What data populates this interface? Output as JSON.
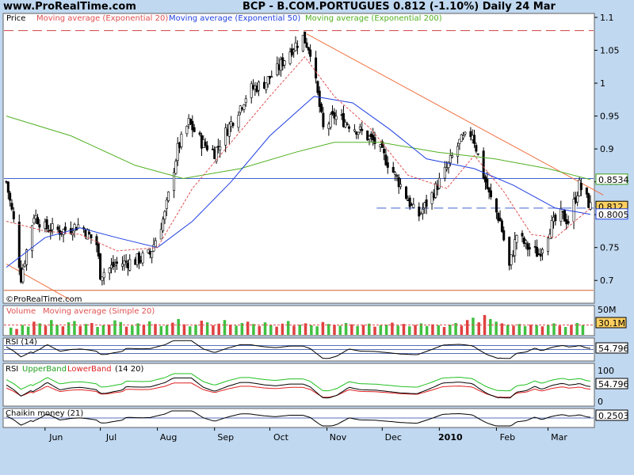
{
  "header": {
    "site": "www.ProRealTime.com",
    "title": "BCP - B.COM.PORTUGUES    0.812 (-1.10%)    Daily  24 Mar"
  },
  "colors": {
    "background": "#c0d8f0",
    "panel": "#ffffff",
    "ema20": "#e05050",
    "ema50": "#2040e0",
    "ema200": "#50b020",
    "trendline": "#f07040",
    "volume_up": "#40c040",
    "volume_down": "#e04040"
  },
  "chart_data": [
    {
      "type": "candlestick",
      "title": "Price",
      "legend": [
        "Moving average (Exponential 20)",
        "Moving average (Exponential 50)",
        "Moving average (Exponential 200)"
      ],
      "ylim": [
        0.675,
        1.1
      ],
      "yticks": [
        "1.1",
        "1.05",
        "1",
        "0.95",
        "0.9",
        "0.85",
        "0.8",
        "0.75",
        "0.7"
      ],
      "xticks": [
        "Jun",
        "Jul",
        "Aug",
        "Sep",
        "Oct",
        "Nov",
        "Dec",
        "2010",
        "Feb",
        "Mar"
      ],
      "x_start": "2009-05-11",
      "x_end": "2010-03-24",
      "close_path": [
        [
          "2009-05-11",
          0.85
        ],
        [
          "2009-05-15",
          0.79
        ],
        [
          "2009-05-19",
          0.705
        ],
        [
          "2009-05-26",
          0.8
        ],
        [
          "2009-06-01",
          0.78
        ],
        [
          "2009-06-10",
          0.775
        ],
        [
          "2009-06-20",
          0.785
        ],
        [
          "2009-06-29",
          0.755
        ],
        [
          "2009-07-01",
          0.71
        ],
        [
          "2009-07-10",
          0.725
        ],
        [
          "2009-07-20",
          0.73
        ],
        [
          "2009-07-28",
          0.74
        ],
        [
          "2009-08-05",
          0.8
        ],
        [
          "2009-08-12",
          0.9
        ],
        [
          "2009-08-18",
          0.94
        ],
        [
          "2009-08-25",
          0.91
        ],
        [
          "2009-09-01",
          0.895
        ],
        [
          "2009-09-10",
          0.94
        ],
        [
          "2009-09-20",
          0.99
        ],
        [
          "2009-09-28",
          1.0
        ],
        [
          "2009-10-05",
          1.02
        ],
        [
          "2009-10-12",
          1.05
        ],
        [
          "2009-10-19",
          1.07
        ],
        [
          "2009-10-23",
          1.05
        ],
        [
          "2009-10-30",
          0.93
        ],
        [
          "2009-11-05",
          0.95
        ],
        [
          "2009-11-12",
          0.94
        ],
        [
          "2009-11-20",
          0.925
        ],
        [
          "2009-11-27",
          0.91
        ],
        [
          "2009-12-05",
          0.875
        ],
        [
          "2009-12-12",
          0.84
        ],
        [
          "2009-12-20",
          0.795
        ],
        [
          "2009-12-28",
          0.83
        ],
        [
          "2010-01-05",
          0.87
        ],
        [
          "2010-01-12",
          0.91
        ],
        [
          "2010-01-19",
          0.925
        ],
        [
          "2010-01-22",
          0.89
        ],
        [
          "2010-01-28",
          0.83
        ],
        [
          "2010-02-03",
          0.79
        ],
        [
          "2010-02-08",
          0.72
        ],
        [
          "2010-02-12",
          0.77
        ],
        [
          "2010-02-18",
          0.75
        ],
        [
          "2010-02-24",
          0.74
        ],
        [
          "2010-03-02",
          0.78
        ],
        [
          "2010-03-08",
          0.8
        ],
        [
          "2010-03-12",
          0.79
        ],
        [
          "2010-03-18",
          0.845
        ],
        [
          "2010-03-24",
          0.812
        ]
      ],
      "ema20_path": [
        [
          "2009-05-11",
          0.79
        ],
        [
          "2009-06-01",
          0.775
        ],
        [
          "2009-06-20",
          0.77
        ],
        [
          "2009-07-10",
          0.745
        ],
        [
          "2009-08-01",
          0.75
        ],
        [
          "2009-08-20",
          0.84
        ],
        [
          "2009-09-10",
          0.91
        ],
        [
          "2009-10-01",
          0.98
        ],
        [
          "2009-10-20",
          1.04
        ],
        [
          "2009-11-05",
          0.98
        ],
        [
          "2009-11-25",
          0.93
        ],
        [
          "2009-12-15",
          0.86
        ],
        [
          "2010-01-05",
          0.84
        ],
        [
          "2010-01-20",
          0.89
        ],
        [
          "2010-02-05",
          0.835
        ],
        [
          "2010-02-20",
          0.77
        ],
        [
          "2010-03-05",
          0.765
        ],
        [
          "2010-03-24",
          0.81
        ]
      ],
      "ema50_path": [
        [
          "2009-05-11",
          0.72
        ],
        [
          "2009-06-01",
          0.765
        ],
        [
          "2009-06-20",
          0.78
        ],
        [
          "2009-07-10",
          0.765
        ],
        [
          "2009-08-01",
          0.75
        ],
        [
          "2009-08-20",
          0.79
        ],
        [
          "2009-09-10",
          0.85
        ],
        [
          "2009-10-01",
          0.92
        ],
        [
          "2009-10-25",
          0.98
        ],
        [
          "2009-11-15",
          0.97
        ],
        [
          "2009-12-05",
          0.93
        ],
        [
          "2009-12-25",
          0.885
        ],
        [
          "2010-01-20",
          0.87
        ],
        [
          "2010-02-10",
          0.845
        ],
        [
          "2010-03-05",
          0.81
        ],
        [
          "2010-03-24",
          0.8005
        ]
      ],
      "ema200_path": [
        [
          "2009-05-11",
          0.95
        ],
        [
          "2009-06-15",
          0.92
        ],
        [
          "2009-07-20",
          0.875
        ],
        [
          "2009-08-15",
          0.855
        ],
        [
          "2009-09-15",
          0.87
        ],
        [
          "2009-10-15",
          0.895
        ],
        [
          "2009-11-05",
          0.91
        ],
        [
          "2009-11-30",
          0.91
        ],
        [
          "2009-12-31",
          0.895
        ],
        [
          "2010-01-31",
          0.885
        ],
        [
          "2010-03-01",
          0.87
        ],
        [
          "2010-03-24",
          0.8534
        ]
      ],
      "horizontal_lines": [
        {
          "value": 1.08,
          "style": "dashed",
          "color": "#d04040"
        },
        {
          "value": 0.855,
          "style": "solid",
          "color": "#4060d0"
        },
        {
          "value": 0.81,
          "style": "dashed",
          "color": "#4060d0",
          "from": "2009-11-28"
        },
        {
          "value": 0.685,
          "style": "solid",
          "color": "#d06030"
        }
      ],
      "trendlines": [
        {
          "from": [
            "2009-10-21",
            1.075
          ],
          "to": [
            "2010-03-31",
            0.83
          ]
        },
        {
          "from": [
            "2009-05-11",
            0.725
          ],
          "to": [
            "2009-06-15",
            0.67
          ]
        }
      ],
      "value_tags": [
        {
          "value": "0.8534",
          "y": 0.8534,
          "color": "#40a020"
        },
        {
          "value": "0.812",
          "y": 0.812,
          "color": "#000000",
          "fill": "#ffd060"
        },
        {
          "value": "0.8005",
          "y": 0.8005,
          "color": "#2040e0"
        }
      ],
      "watermark": "©ProRealTime.com"
    },
    {
      "type": "bar",
      "title": "Volume",
      "legend": [
        "Moving average (Simple 20)"
      ],
      "ylabel_top": "50M",
      "tag": "30.1M",
      "ma_level": 30.1,
      "ylim": [
        0,
        60
      ],
      "values": [
        22,
        18,
        30,
        25,
        40,
        35,
        28,
        45,
        30,
        26,
        38,
        42,
        27,
        33,
        36,
        24,
        29,
        31,
        44,
        39,
        25,
        28,
        35,
        30,
        41,
        33,
        27,
        29,
        37,
        48,
        32,
        26,
        30,
        43,
        38,
        29,
        34,
        45,
        31,
        28,
        36,
        40,
        33,
        27,
        38,
        30,
        25,
        34,
        42,
        28,
        31,
        35,
        29,
        26,
        39,
        33,
        30,
        28,
        36,
        32,
        27,
        30,
        34,
        25,
        29,
        31,
        37,
        28,
        33,
        26,
        30,
        35,
        27,
        32,
        29,
        24,
        31,
        36,
        28,
        45,
        52,
        38,
        60,
        48,
        40,
        35,
        30,
        28,
        33,
        27,
        31,
        29,
        26,
        30,
        35,
        28,
        24,
        30,
        36,
        29
      ],
      "up": [
        1,
        0,
        1,
        1,
        0,
        1,
        0,
        1,
        1,
        0,
        1,
        1,
        0,
        1,
        0,
        1,
        1,
        0,
        1,
        1,
        0,
        1,
        1,
        0,
        1,
        0,
        1,
        1,
        0,
        1,
        0,
        1,
        1,
        0,
        1,
        0,
        0,
        1,
        0,
        1,
        1,
        0,
        1,
        0,
        1,
        1,
        0,
        0,
        1,
        0,
        1,
        0,
        1,
        1,
        0,
        1,
        0,
        1,
        1,
        0,
        1,
        0,
        1,
        0,
        1,
        1,
        0,
        1,
        0,
        1,
        0,
        1,
        1,
        0,
        1,
        0,
        1,
        1,
        0,
        0,
        1,
        0,
        0,
        1,
        1,
        0,
        1,
        0,
        1,
        1,
        0,
        1,
        0,
        1,
        1,
        0,
        1,
        0,
        1,
        1
      ]
    },
    {
      "type": "line",
      "title": "RSI (14)",
      "tag": "54.796",
      "ylim": [
        0,
        100
      ],
      "levels": [
        70,
        50,
        30
      ]
    },
    {
      "type": "line",
      "title": "RSI",
      "legend": [
        "UpperBand",
        "LowerBand",
        "(14 20)"
      ],
      "yticks": [
        "100",
        "0"
      ],
      "tag": "54.796",
      "ylim": [
        0,
        100
      ]
    },
    {
      "type": "line",
      "title": "Chaikin money (21)",
      "tag": "0.2503",
      "ylim": [
        -0.5,
        0.5
      ]
    }
  ]
}
